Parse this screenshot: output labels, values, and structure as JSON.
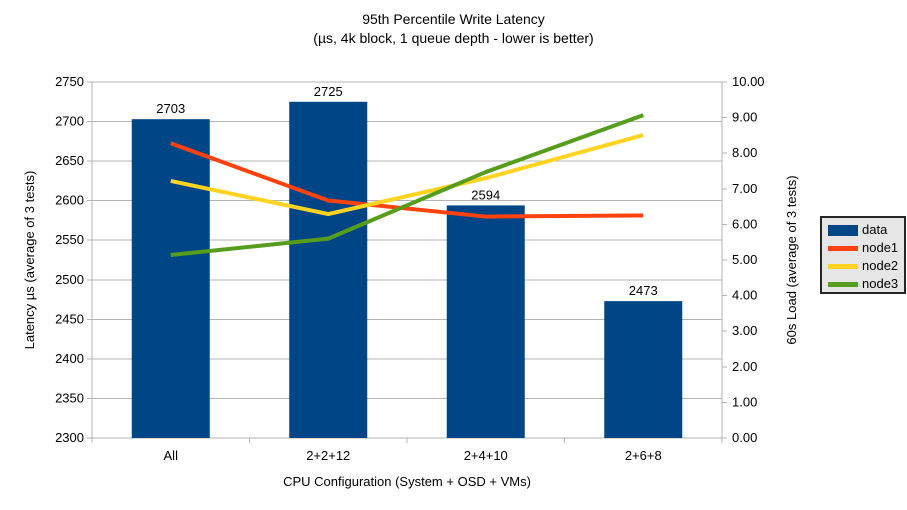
{
  "title": {
    "line1": "95th Percentile Write Latency",
    "line2": "(µs, 4k block, 1 queue depth - lower is better)"
  },
  "chart_data": {
    "type": "bar+line",
    "categories": [
      "All",
      "2+2+12",
      "2+4+10",
      "2+6+8"
    ],
    "bar_series": {
      "name": "data",
      "color": "#004586",
      "axis": "left",
      "values": [
        2703,
        2725,
        2594,
        2473
      ],
      "data_labels": [
        "2703",
        "2725",
        "2594",
        "2473"
      ]
    },
    "line_series": [
      {
        "name": "node1",
        "color": "#ff420e",
        "axis": "right",
        "values": [
          8.28,
          6.67,
          6.22,
          6.25
        ]
      },
      {
        "name": "node2",
        "color": "#ffd320",
        "axis": "right",
        "values": [
          7.22,
          6.29,
          7.3,
          8.51
        ]
      },
      {
        "name": "node3",
        "color": "#579d1c",
        "axis": "right",
        "values": [
          5.14,
          5.6,
          7.47,
          9.07
        ]
      }
    ],
    "left_axis": {
      "title": "Latency µs (average of 3 tests)",
      "min": 2300,
      "max": 2750,
      "step": 50,
      "tick_labels": [
        "2750",
        "2700",
        "2650",
        "2600",
        "2550",
        "2500",
        "2450",
        "2400",
        "2350",
        "2300"
      ]
    },
    "right_axis": {
      "title": "60s Load (average of 3 tests)",
      "min": 0,
      "max": 10,
      "step": 1,
      "tick_labels": [
        "10.00",
        "9.00",
        "8.00",
        "7.00",
        "6.00",
        "5.00",
        "4.00",
        "3.00",
        "2.00",
        "1.00",
        "0.00"
      ]
    },
    "x_axis": {
      "title": "CPU Configuration (System + OSD + VMs)"
    },
    "grid": true,
    "legend": {
      "position": "right",
      "items": [
        {
          "label": "data",
          "type": "bar",
          "color": "#004586"
        },
        {
          "label": "node1",
          "type": "line",
          "color": "#ff420e"
        },
        {
          "label": "node2",
          "type": "line",
          "color": "#ffd320"
        },
        {
          "label": "node3",
          "type": "line",
          "color": "#579d1c"
        }
      ]
    },
    "style": {
      "gridline_color": "#b3b3b3",
      "axis_color": "#b3b3b3",
      "text_color": "#000000",
      "background": "#ffffff",
      "legend_background": "#e6e6e6",
      "legend_border": "#262626"
    }
  }
}
